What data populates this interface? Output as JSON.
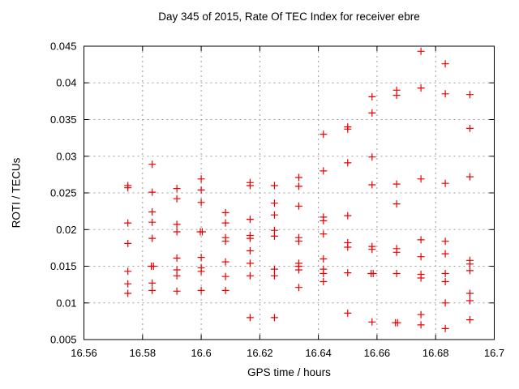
{
  "chart_data": {
    "type": "scatter",
    "title": "Day 345 of 2015, Rate Of TEC Index for receiver ebre",
    "xlabel": "GPS time / hours",
    "ylabel": "ROTI / TECUs",
    "xlim": [
      16.56,
      16.7
    ],
    "ylim": [
      0.005,
      0.045
    ],
    "xticks": [
      16.56,
      16.58,
      16.6,
      16.62,
      16.64,
      16.66,
      16.68,
      16.7
    ],
    "xtick_labels": [
      "16.56",
      "16.58",
      "16.6",
      "16.62",
      "16.64",
      "16.66",
      "16.68",
      "16.7"
    ],
    "yticks": [
      0.005,
      0.01,
      0.015,
      0.02,
      0.025,
      0.03,
      0.035,
      0.04,
      0.045
    ],
    "ytick_labels": [
      "0.005",
      "0.01",
      "0.015",
      "0.02",
      "0.025",
      "0.03",
      "0.035",
      "0.04",
      "0.045"
    ],
    "grid": true,
    "legend": "none",
    "marker": "plus",
    "marker_color": "#ee0000",
    "series": [
      {
        "name": "ROTI",
        "points": [
          [
            16.575,
            0.026
          ],
          [
            16.575,
            0.0257
          ],
          [
            16.575,
            0.0209
          ],
          [
            16.575,
            0.0181
          ],
          [
            16.575,
            0.0143
          ],
          [
            16.575,
            0.0126
          ],
          [
            16.575,
            0.0113
          ],
          [
            16.5833,
            0.0289
          ],
          [
            16.5833,
            0.0251
          ],
          [
            16.5833,
            0.0224
          ],
          [
            16.5833,
            0.021
          ],
          [
            16.5833,
            0.0188
          ],
          [
            16.583,
            0.015
          ],
          [
            16.5837,
            0.015
          ],
          [
            16.5833,
            0.0127
          ],
          [
            16.5833,
            0.0117
          ],
          [
            16.5917,
            0.0256
          ],
          [
            16.5917,
            0.0242
          ],
          [
            16.5917,
            0.0207
          ],
          [
            16.5917,
            0.0197
          ],
          [
            16.5917,
            0.0161
          ],
          [
            16.5917,
            0.0145
          ],
          [
            16.5917,
            0.0137
          ],
          [
            16.5917,
            0.0116
          ],
          [
            16.6,
            0.0269
          ],
          [
            16.6,
            0.0254
          ],
          [
            16.6,
            0.0237
          ],
          [
            16.5997,
            0.0197
          ],
          [
            16.6004,
            0.0197
          ],
          [
            16.6,
            0.0162
          ],
          [
            16.6,
            0.0148
          ],
          [
            16.6,
            0.0143
          ],
          [
            16.6,
            0.0117
          ],
          [
            16.6083,
            0.0223
          ],
          [
            16.6083,
            0.0209
          ],
          [
            16.6083,
            0.0189
          ],
          [
            16.6083,
            0.0184
          ],
          [
            16.6083,
            0.0156
          ],
          [
            16.6083,
            0.0136
          ],
          [
            16.6083,
            0.0117
          ],
          [
            16.6167,
            0.0264
          ],
          [
            16.6167,
            0.026
          ],
          [
            16.6167,
            0.0214
          ],
          [
            16.6167,
            0.0192
          ],
          [
            16.6167,
            0.0188
          ],
          [
            16.6167,
            0.0171
          ],
          [
            16.6167,
            0.0154
          ],
          [
            16.6167,
            0.0137
          ],
          [
            16.6167,
            0.008
          ],
          [
            16.625,
            0.026
          ],
          [
            16.625,
            0.0236
          ],
          [
            16.625,
            0.022
          ],
          [
            16.625,
            0.0199
          ],
          [
            16.625,
            0.0191
          ],
          [
            16.625,
            0.0146
          ],
          [
            16.625,
            0.0137
          ],
          [
            16.625,
            0.008
          ],
          [
            16.6333,
            0.0271
          ],
          [
            16.6333,
            0.0259
          ],
          [
            16.6333,
            0.0232
          ],
          [
            16.6333,
            0.0189
          ],
          [
            16.6333,
            0.0184
          ],
          [
            16.6333,
            0.0154
          ],
          [
            16.6333,
            0.015
          ],
          [
            16.6333,
            0.0145
          ],
          [
            16.6333,
            0.0121
          ],
          [
            16.6417,
            0.033
          ],
          [
            16.6417,
            0.028
          ],
          [
            16.6417,
            0.0217
          ],
          [
            16.6417,
            0.0212
          ],
          [
            16.6417,
            0.0194
          ],
          [
            16.6417,
            0.016
          ],
          [
            16.6417,
            0.0146
          ],
          [
            16.6417,
            0.014
          ],
          [
            16.6417,
            0.0129
          ],
          [
            16.65,
            0.034
          ],
          [
            16.65,
            0.0337
          ],
          [
            16.65,
            0.0291
          ],
          [
            16.65,
            0.0219
          ],
          [
            16.65,
            0.0182
          ],
          [
            16.65,
            0.0176
          ],
          [
            16.65,
            0.0141
          ],
          [
            16.65,
            0.0086
          ],
          [
            16.6583,
            0.0381
          ],
          [
            16.6583,
            0.0359
          ],
          [
            16.6583,
            0.0299
          ],
          [
            16.6583,
            0.0261
          ],
          [
            16.6583,
            0.0177
          ],
          [
            16.6583,
            0.0173
          ],
          [
            16.658,
            0.014
          ],
          [
            16.6587,
            0.014
          ],
          [
            16.6583,
            0.0074
          ],
          [
            16.6667,
            0.039
          ],
          [
            16.6667,
            0.0383
          ],
          [
            16.6667,
            0.0262
          ],
          [
            16.6667,
            0.0235
          ],
          [
            16.6667,
            0.0174
          ],
          [
            16.6667,
            0.0169
          ],
          [
            16.6667,
            0.014
          ],
          [
            16.6663,
            0.0073
          ],
          [
            16.667,
            0.0073
          ],
          [
            16.675,
            0.0443
          ],
          [
            16.675,
            0.0393
          ],
          [
            16.675,
            0.0269
          ],
          [
            16.675,
            0.0186
          ],
          [
            16.675,
            0.0163
          ],
          [
            16.675,
            0.0139
          ],
          [
            16.675,
            0.0134
          ],
          [
            16.675,
            0.0084
          ],
          [
            16.675,
            0.007
          ],
          [
            16.6833,
            0.0426
          ],
          [
            16.6833,
            0.0385
          ],
          [
            16.6833,
            0.0263
          ],
          [
            16.6833,
            0.0184
          ],
          [
            16.6833,
            0.0167
          ],
          [
            16.6833,
            0.014
          ],
          [
            16.6833,
            0.0129
          ],
          [
            16.6833,
            0.01
          ],
          [
            16.6833,
            0.0065
          ],
          [
            16.6917,
            0.0384
          ],
          [
            16.6917,
            0.0338
          ],
          [
            16.6917,
            0.0272
          ],
          [
            16.6917,
            0.0158
          ],
          [
            16.6917,
            0.0153
          ],
          [
            16.6917,
            0.0144
          ],
          [
            16.6917,
            0.0113
          ],
          [
            16.6917,
            0.0103
          ],
          [
            16.6917,
            0.0077
          ]
        ]
      }
    ]
  }
}
